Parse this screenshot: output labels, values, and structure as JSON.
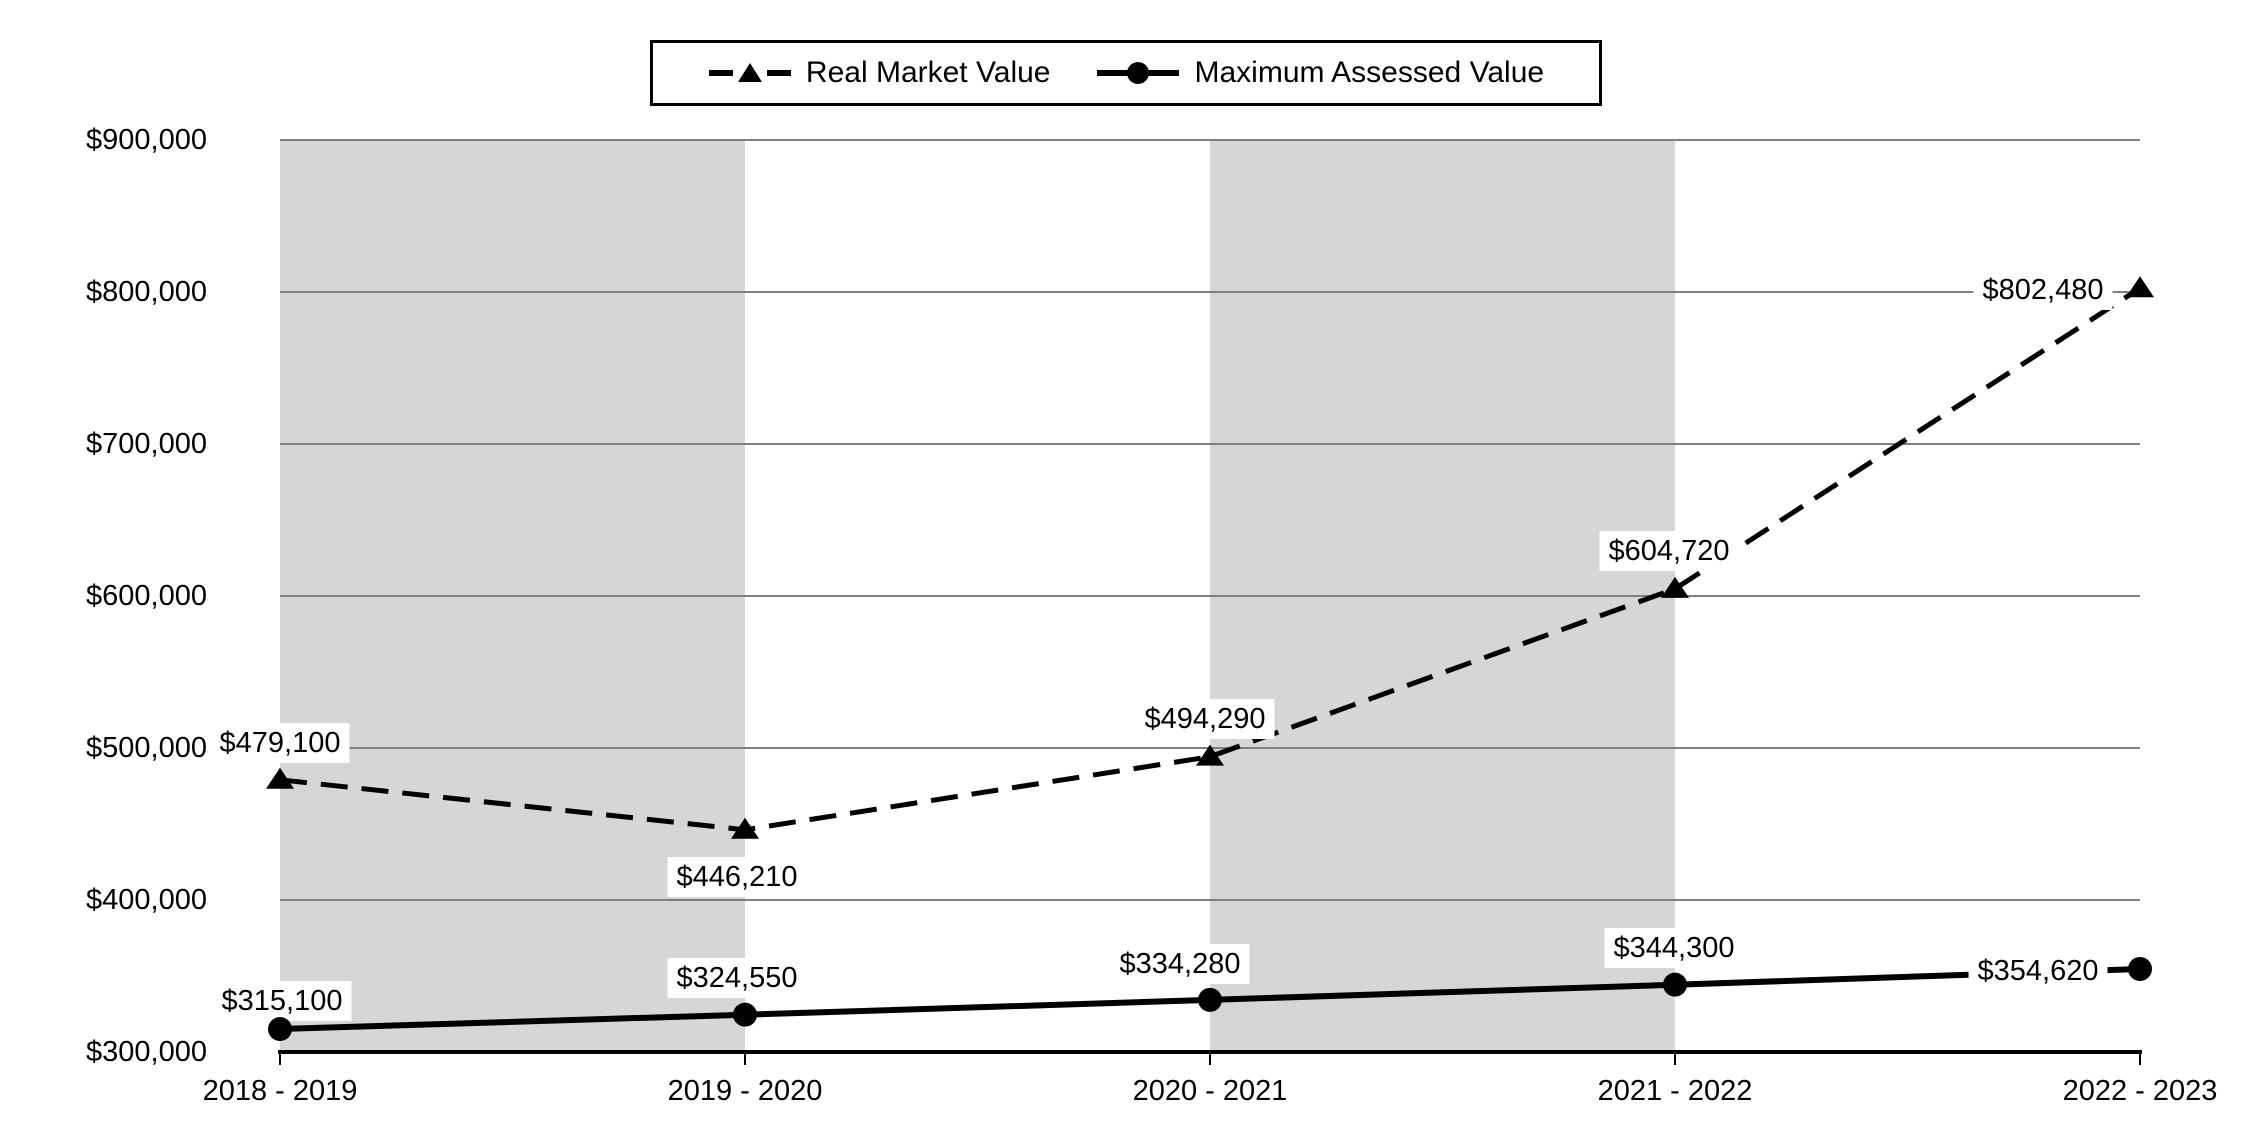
{
  "chart_data": {
    "type": "line",
    "title": "",
    "categories": [
      "2018 - 2019",
      "2019 - 2020",
      "2020 - 2021",
      "2021 - 2022",
      "2022 - 2023"
    ],
    "series": [
      {
        "name": "Real Market Value",
        "line_style": "dashed",
        "marker": "triangle",
        "values": [
          479100,
          446210,
          494290,
          604720,
          802480
        ],
        "data_labels": [
          "$479,100",
          "$446,210",
          "$494,290",
          "$604,720",
          "$802,480"
        ],
        "label_offsets": [
          [
            0,
            -37
          ],
          [
            -8,
            47
          ],
          [
            -5,
            -38
          ],
          [
            -6,
            -38
          ],
          [
            -97,
            2
          ]
        ]
      },
      {
        "name": "Maximum Assessed Value",
        "line_style": "solid",
        "marker": "circle",
        "values": [
          315100,
          324550,
          334280,
          344300,
          354620
        ],
        "data_labels": [
          "$315,100",
          "$324,550",
          "$334,280",
          "$344,300",
          "$354,620"
        ],
        "label_offsets": [
          [
            2,
            -28
          ],
          [
            -8,
            -37
          ],
          [
            -30,
            -36
          ],
          [
            -1,
            -37
          ],
          [
            -102,
            2
          ]
        ]
      }
    ],
    "y_axis": {
      "min": 300000,
      "max": 900000,
      "tick_step": 100000,
      "tick_labels": [
        "$300,000",
        "$400,000",
        "$500,000",
        "$600,000",
        "$700,000",
        "$800,000",
        "$900,000"
      ]
    },
    "x_axis": {
      "tick_labels": [
        "2018 - 2019",
        "2019 - 2020",
        "2020 - 2021",
        "2021 - 2022",
        "2022 - 2023"
      ]
    },
    "legend": {
      "position": "top"
    },
    "grid": true,
    "background_bands": {
      "category_intervals": [
        [
          0,
          1
        ],
        [
          2,
          3
        ]
      ]
    },
    "colors": {
      "series_line": "#000000",
      "gridline": "#7f7f7f",
      "band": "#d6d6d6",
      "axis": "#000000",
      "label_background": "#ffffff",
      "text": "#000000",
      "legend_border": "#000000"
    }
  }
}
